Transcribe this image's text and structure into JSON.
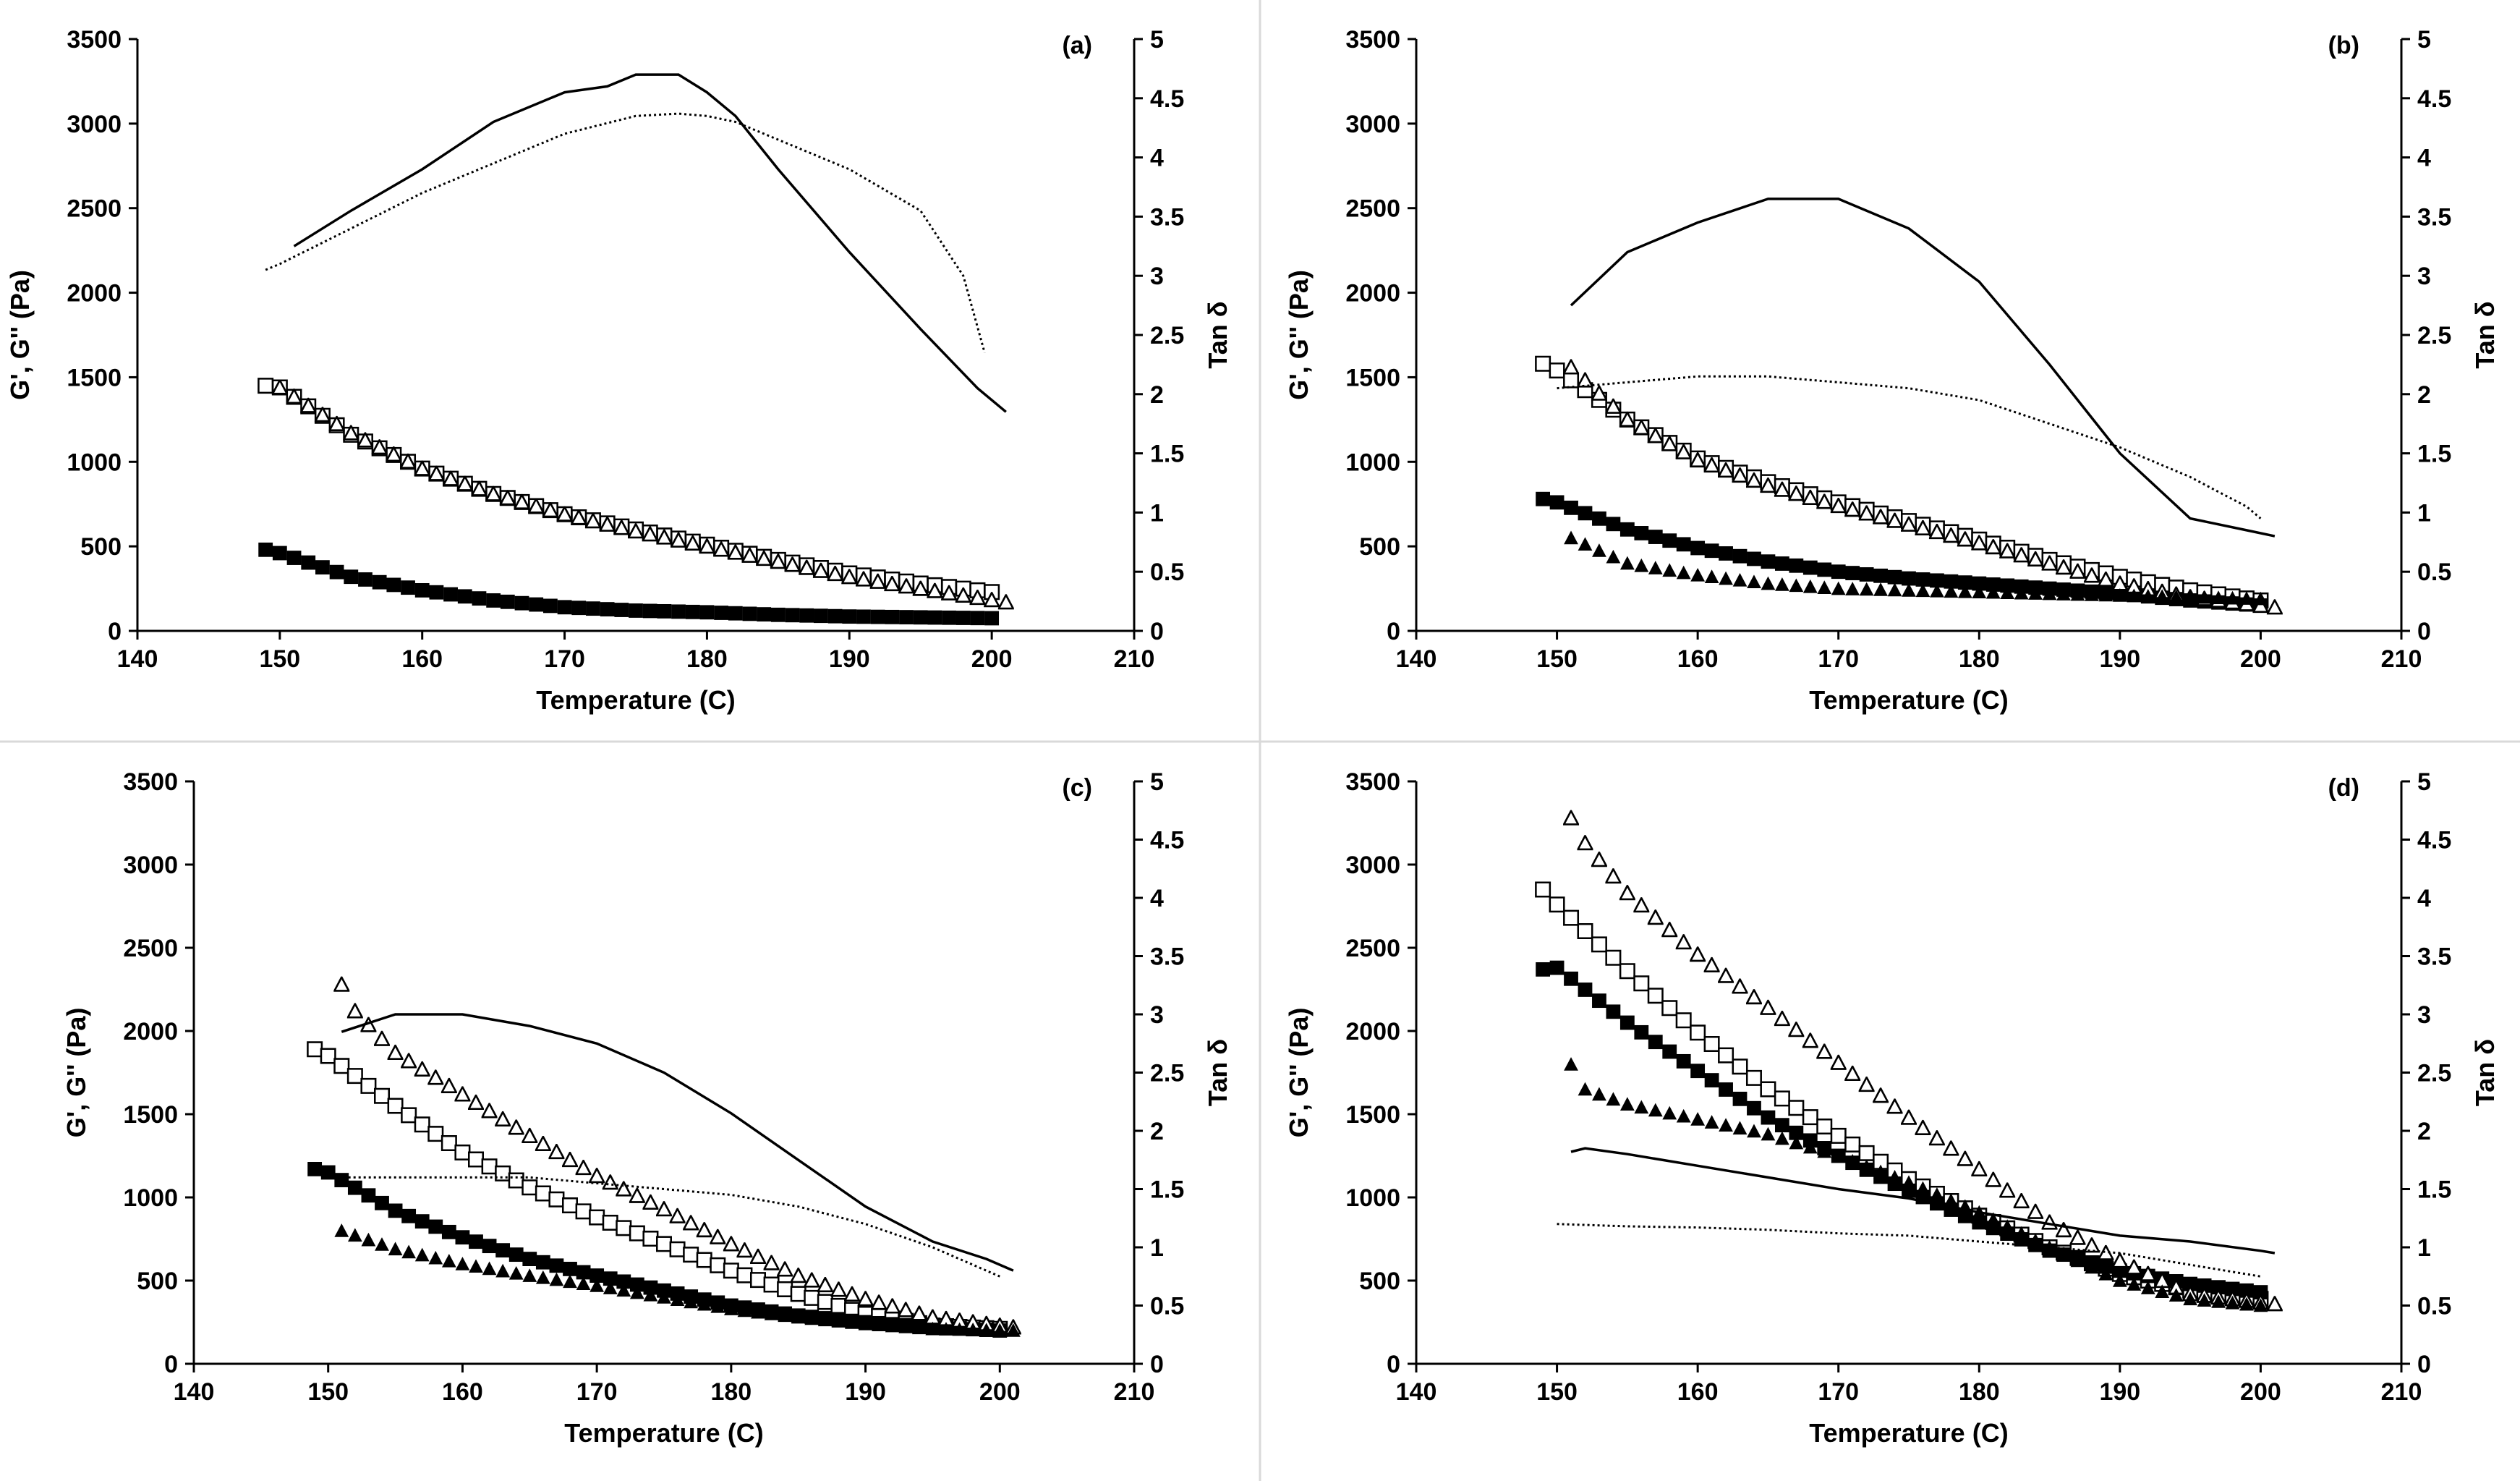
{
  "colors": {
    "background": "#ffffff",
    "ink": "#000000",
    "divider": "#d9d9d9"
  },
  "series_styles": [
    {
      "marker": "open-square"
    },
    {
      "marker": "filled-square"
    },
    {
      "marker": "open-triangle"
    },
    {
      "marker": "filled-triangle"
    },
    {
      "line": "solid"
    },
    {
      "line": "dotted"
    }
  ],
  "chart_data": [
    {
      "type": "scatter",
      "panel_label": "(a)",
      "xlabel": "Temperature (C)",
      "ylabel": "G', G'' (Pa)",
      "y2label": "Tan δ",
      "xlim": [
        140,
        210
      ],
      "ylim": [
        0,
        3500
      ],
      "y2lim": [
        0,
        5
      ],
      "xticks": [
        "140",
        "150",
        "160",
        "170",
        "180",
        "190",
        "200",
        "210"
      ],
      "yticks": [
        "0",
        "500",
        "1000",
        "1500",
        "2000",
        "2500",
        "3000",
        "3500"
      ],
      "y2ticks": [
        "0",
        "0.5",
        "1",
        "1.5",
        "2",
        "2.5",
        "3",
        "3.5",
        "4",
        "4.5",
        "5"
      ],
      "series": [
        {
          "x": [
            149,
            150,
            155,
            160,
            165,
            170,
            175,
            180,
            185,
            190,
            195,
            200
          ],
          "y": [
            1450,
            1440,
            1160,
            960,
            810,
            690,
            600,
            510,
            420,
            340,
            280,
            230
          ]
        },
        {
          "x": [
            149,
            150,
            155,
            160,
            165,
            170,
            175,
            180,
            185,
            190,
            195,
            200
          ],
          "y": [
            480,
            460,
            320,
            240,
            180,
            140,
            120,
            110,
            95,
            85,
            80,
            75
          ]
        },
        {
          "x": [
            150,
            155,
            160,
            165,
            170,
            175,
            180,
            185,
            190,
            195,
            201
          ],
          "y": [
            1440,
            1170,
            960,
            810,
            690,
            590,
            500,
            410,
            320,
            250,
            170
          ]
        },
        {
          "x": [],
          "y": []
        },
        {
          "axis": "y2",
          "x": [
            151,
            155,
            160,
            165,
            170,
            173,
            175,
            178,
            180,
            182,
            185,
            190,
            195,
            199,
            201
          ],
          "y": [
            3.25,
            3.55,
            3.9,
            4.3,
            4.55,
            4.6,
            4.7,
            4.7,
            4.55,
            4.35,
            3.9,
            3.2,
            2.55,
            2.05,
            1.85
          ]
        },
        {
          "axis": "y2",
          "x": [
            149,
            150,
            155,
            160,
            165,
            170,
            175,
            178,
            180,
            182,
            185,
            190,
            195,
            198,
            199.5
          ],
          "y": [
            3.05,
            3.1,
            3.4,
            3.7,
            3.95,
            4.2,
            4.35,
            4.37,
            4.35,
            4.3,
            4.15,
            3.9,
            3.55,
            3.0,
            2.35
          ]
        }
      ]
    },
    {
      "type": "scatter",
      "panel_label": "(b)",
      "xlabel": "Temperature (C)",
      "ylabel": "G', G'' (Pa)",
      "y2label": "Tan δ",
      "xlim": [
        140,
        210
      ],
      "ylim": [
        0,
        3500
      ],
      "y2lim": [
        0,
        5
      ],
      "xticks": [
        "140",
        "150",
        "160",
        "170",
        "180",
        "190",
        "200",
        "210"
      ],
      "yticks": [
        "0",
        "500",
        "1000",
        "1500",
        "2000",
        "2500",
        "3000",
        "3500"
      ],
      "y2ticks": [
        "0",
        "0.5",
        "1",
        "1.5",
        "2",
        "2.5",
        "3",
        "3.5",
        "4",
        "4.5",
        "5"
      ],
      "series": [
        {
          "x": [
            149,
            150,
            155,
            160,
            165,
            170,
            175,
            180,
            185,
            190,
            195,
            200
          ],
          "y": [
            1580,
            1540,
            1250,
            1020,
            880,
            760,
            650,
            540,
            420,
            320,
            240,
            180
          ]
        },
        {
          "x": [
            149,
            150,
            155,
            160,
            165,
            170,
            175,
            180,
            185,
            190,
            195,
            200
          ],
          "y": [
            780,
            760,
            600,
            490,
            410,
            350,
            310,
            280,
            250,
            220,
            180,
            150
          ]
        },
        {
          "x": [
            151,
            155,
            160,
            165,
            170,
            175,
            180,
            185,
            190,
            195,
            201
          ],
          "y": [
            1560,
            1250,
            1010,
            860,
            740,
            630,
            520,
            400,
            280,
            200,
            140
          ]
        },
        {
          "x": [
            151,
            155,
            160,
            165,
            170,
            175,
            180,
            185,
            190,
            195,
            200
          ],
          "y": [
            550,
            400,
            330,
            280,
            250,
            240,
            230,
            220,
            210,
            200,
            190
          ]
        },
        {
          "axis": "y2",
          "x": [
            151,
            155,
            160,
            165,
            170,
            175,
            180,
            185,
            190,
            195,
            199,
            201
          ],
          "y": [
            2.75,
            3.2,
            3.45,
            3.65,
            3.65,
            3.4,
            2.95,
            2.25,
            1.5,
            0.95,
            0.85,
            0.8
          ]
        },
        {
          "axis": "y2",
          "x": [
            150,
            155,
            160,
            165,
            170,
            175,
            180,
            185,
            190,
            195,
            199,
            200
          ],
          "y": [
            2.05,
            2.1,
            2.15,
            2.15,
            2.1,
            2.05,
            1.95,
            1.75,
            1.55,
            1.3,
            1.05,
            0.95
          ]
        }
      ]
    },
    {
      "type": "scatter",
      "panel_label": "(c)",
      "xlabel": "Temperature (C)",
      "ylabel": "G', G'' (Pa)",
      "y2label": "Tan δ",
      "xlim": [
        140,
        210
      ],
      "ylim": [
        0,
        3500
      ],
      "y2lim": [
        0,
        5
      ],
      "xticks": [
        "140",
        "150",
        "160",
        "170",
        "180",
        "190",
        "200",
        "210"
      ],
      "yticks": [
        "0",
        "500",
        "1000",
        "1500",
        "2000",
        "2500",
        "3000",
        "3500"
      ],
      "y2ticks": [
        "0",
        "0.5",
        "1",
        "1.5",
        "2",
        "2.5",
        "3",
        "3.5",
        "4",
        "4.5",
        "5"
      ],
      "series": [
        {
          "x": [
            149,
            150,
            155,
            160,
            165,
            170,
            175,
            180,
            185,
            190,
            195,
            200
          ],
          "y": [
            1890,
            1850,
            1550,
            1270,
            1060,
            880,
            720,
            560,
            420,
            300,
            230,
            210
          ]
        },
        {
          "x": [
            149,
            150,
            155,
            160,
            165,
            170,
            175,
            180,
            185,
            190,
            195,
            200
          ],
          "y": [
            1170,
            1150,
            920,
            760,
            630,
            530,
            440,
            350,
            290,
            250,
            220,
            200
          ]
        },
        {
          "x": [
            151,
            152,
            155,
            160,
            165,
            170,
            175,
            180,
            185,
            190,
            195,
            201
          ],
          "y": [
            2280,
            2120,
            1870,
            1620,
            1370,
            1130,
            930,
            720,
            530,
            390,
            280,
            220
          ]
        },
        {
          "x": [
            151,
            155,
            160,
            165,
            170,
            175,
            180,
            185,
            190,
            195,
            201
          ],
          "y": [
            800,
            690,
            600,
            530,
            470,
            400,
            330,
            280,
            240,
            210,
            200
          ]
        },
        {
          "axis": "y2",
          "x": [
            151,
            155,
            160,
            165,
            170,
            175,
            180,
            185,
            190,
            195,
            199,
            201
          ],
          "y": [
            2.85,
            3.0,
            3.0,
            2.9,
            2.75,
            2.5,
            2.15,
            1.75,
            1.35,
            1.05,
            0.9,
            0.8
          ]
        },
        {
          "axis": "y2",
          "x": [
            150,
            155,
            160,
            165,
            170,
            175,
            180,
            185,
            190,
            195,
            200
          ],
          "y": [
            1.6,
            1.6,
            1.6,
            1.6,
            1.55,
            1.5,
            1.45,
            1.35,
            1.2,
            1.0,
            0.75
          ]
        }
      ]
    },
    {
      "type": "scatter",
      "panel_label": "(d)",
      "xlabel": "Temperature (C)",
      "ylabel": "G', G'' (Pa)",
      "y2label": "Tan δ",
      "xlim": [
        140,
        210
      ],
      "ylim": [
        0,
        3500
      ],
      "y2lim": [
        0,
        5
      ],
      "xticks": [
        "140",
        "150",
        "160",
        "170",
        "180",
        "190",
        "200",
        "210"
      ],
      "yticks": [
        "0",
        "500",
        "1000",
        "1500",
        "2000",
        "2500",
        "3000",
        "3500"
      ],
      "y2ticks": [
        "0",
        "0.5",
        "1",
        "1.5",
        "2",
        "2.5",
        "3",
        "3.5",
        "4",
        "4.5",
        "5"
      ],
      "series": [
        {
          "x": [
            149,
            150,
            155,
            160,
            165,
            170,
            175,
            180,
            185,
            190,
            195,
            200
          ],
          "y": [
            2850,
            2760,
            2360,
            1990,
            1650,
            1370,
            1110,
            890,
            700,
            540,
            440,
            390
          ]
        },
        {
          "x": [
            149,
            150,
            155,
            160,
            165,
            170,
            175,
            180,
            185,
            190,
            195,
            200
          ],
          "y": [
            2370,
            2380,
            2050,
            1760,
            1480,
            1250,
            1040,
            850,
            680,
            560,
            480,
            430
          ]
        },
        {
          "x": [
            151,
            152,
            155,
            160,
            165,
            170,
            175,
            180,
            185,
            190,
            195,
            201
          ],
          "y": [
            3280,
            3130,
            2830,
            2460,
            2140,
            1810,
            1480,
            1170,
            850,
            620,
            420,
            360
          ]
        },
        {
          "x": [
            151,
            152,
            155,
            160,
            165,
            170,
            175,
            180,
            185,
            190,
            195,
            200
          ],
          "y": [
            1800,
            1650,
            1560,
            1470,
            1380,
            1250,
            1090,
            910,
            700,
            500,
            390,
            350
          ]
        },
        {
          "axis": "y2",
          "x": [
            151,
            152,
            155,
            160,
            165,
            170,
            175,
            180,
            185,
            190,
            195,
            200,
            201
          ],
          "y": [
            1.82,
            1.85,
            1.8,
            1.7,
            1.6,
            1.5,
            1.42,
            1.3,
            1.2,
            1.1,
            1.05,
            0.97,
            0.95
          ]
        },
        {
          "axis": "y2",
          "x": [
            150,
            155,
            160,
            165,
            170,
            175,
            180,
            185,
            190,
            195,
            200
          ],
          "y": [
            1.2,
            1.18,
            1.17,
            1.15,
            1.12,
            1.1,
            1.05,
            1.0,
            0.95,
            0.85,
            0.75
          ]
        }
      ]
    }
  ]
}
